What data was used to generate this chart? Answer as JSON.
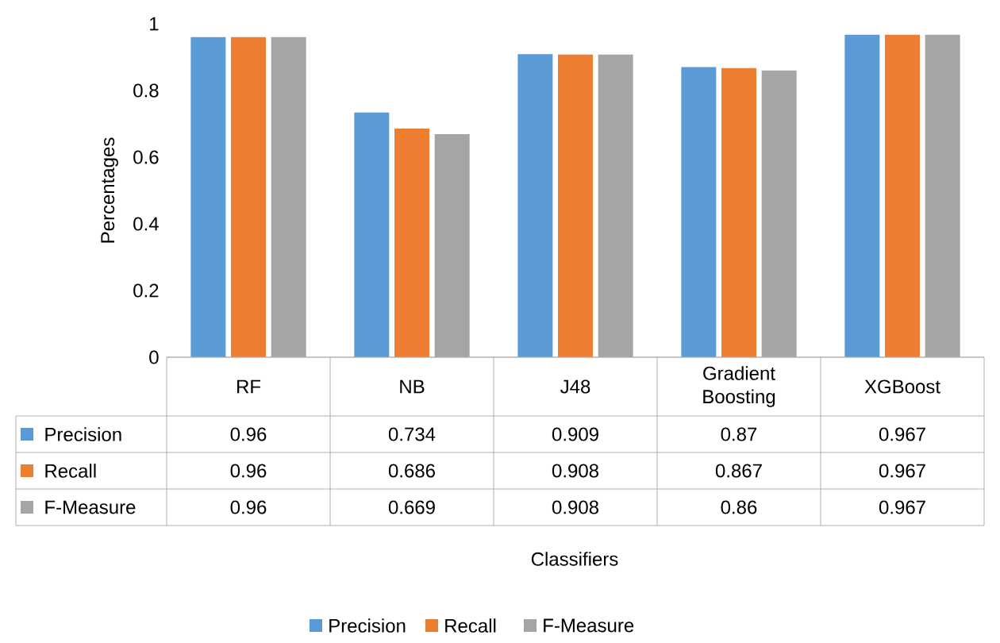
{
  "chart_data": {
    "type": "bar",
    "annotations": [
      "Classifiers"
    ],
    "ylabel": "Percentages",
    "categories": [
      "RF",
      "NB",
      "J48",
      "Gradient Boosting",
      "XGBoost"
    ],
    "series": [
      {
        "name": "Precision",
        "color": "#5b9bd5",
        "values": [
          0.96,
          0.734,
          0.909,
          0.87,
          0.967
        ]
      },
      {
        "name": "Recall",
        "color": "#ed7d31",
        "values": [
          0.96,
          0.686,
          0.908,
          0.867,
          0.967
        ]
      },
      {
        "name": "F-Measure",
        "color": "#a5a5a5",
        "values": [
          0.96,
          0.669,
          0.908,
          0.86,
          0.967
        ]
      }
    ],
    "ylim": [
      0,
      1
    ],
    "yticks": [
      0,
      0.2,
      0.4,
      0.6,
      0.8,
      1
    ],
    "data_labels": true,
    "legend": "bottom",
    "grid": false
  }
}
